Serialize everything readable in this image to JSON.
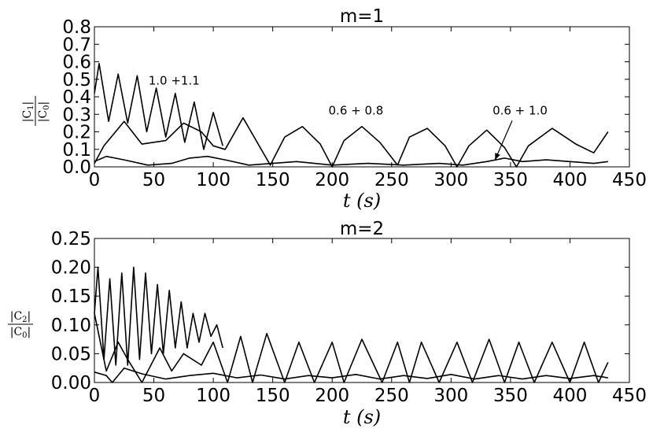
{
  "chart_data": [
    {
      "type": "line",
      "title": "m=1",
      "xlabel": "t (s)",
      "ylabel": {
        "num": "|C",
        "num_sub": "1",
        "den": "|C",
        "den_sub": "0"
      },
      "xlim": [
        0,
        450
      ],
      "ylim": [
        0,
        0.8
      ],
      "xticks": [
        0,
        50,
        100,
        150,
        200,
        250,
        300,
        350,
        400,
        450
      ],
      "yticks": [
        "0.0",
        "0.1",
        "0.2",
        "0.3",
        "0.4",
        "0.5",
        "0.6",
        "0.7",
        "0.8"
      ],
      "grid": false,
      "annotations": [
        {
          "text": "1.0 +1.1",
          "x": 67,
          "y": 0.47
        },
        {
          "text": "0.6 + 0.8",
          "x": 220,
          "y": 0.3
        },
        {
          "text": "0.6 + 1.0",
          "x": 358,
          "y": 0.3,
          "arrow_to": [
            337,
            0.04
          ]
        }
      ],
      "series": [
        {
          "x": [
            0,
            4,
            12,
            20,
            28,
            36,
            44,
            52,
            60,
            68,
            76,
            84,
            92,
            100,
            108
          ],
          "y": [
            0.42,
            0.59,
            0.26,
            0.53,
            0.25,
            0.52,
            0.2,
            0.45,
            0.17,
            0.42,
            0.14,
            0.37,
            0.1,
            0.31,
            0.12
          ]
        },
        {
          "x": [
            0,
            8,
            25,
            40,
            60,
            75,
            90,
            100,
            110,
            125,
            148,
            160,
            175,
            190,
            200,
            210,
            225,
            240,
            255,
            265,
            280,
            295,
            305,
            315,
            330,
            345,
            355,
            365,
            385,
            405,
            420,
            432
          ],
          "y": [
            0.02,
            0.12,
            0.26,
            0.13,
            0.15,
            0.25,
            0.2,
            0.12,
            0.1,
            0.28,
            0.01,
            0.17,
            0.23,
            0.13,
            0.0,
            0.15,
            0.23,
            0.14,
            0.01,
            0.17,
            0.22,
            0.12,
            0.0,
            0.12,
            0.21,
            0.11,
            0.0,
            0.12,
            0.22,
            0.13,
            0.08,
            0.2
          ]
        },
        {
          "x": [
            0,
            10,
            25,
            45,
            65,
            80,
            95,
            110,
            130,
            150,
            170,
            185,
            200,
            230,
            260,
            290,
            310,
            330,
            345,
            360,
            380,
            400,
            420,
            432
          ],
          "y": [
            0.03,
            0.06,
            0.04,
            0.01,
            0.02,
            0.05,
            0.06,
            0.04,
            0.01,
            0.02,
            0.03,
            0.02,
            0.01,
            0.02,
            0.01,
            0.02,
            0.01,
            0.03,
            0.05,
            0.03,
            0.04,
            0.03,
            0.02,
            0.03
          ]
        }
      ]
    },
    {
      "type": "line",
      "title": "m=2",
      "xlabel": "t (s)",
      "ylabel": {
        "num": "|C",
        "num_sub": "2",
        "den": "|C",
        "den_sub": "0"
      },
      "xlim": [
        0,
        450
      ],
      "ylim": [
        0,
        0.25
      ],
      "xticks": [
        0,
        50,
        100,
        150,
        200,
        250,
        300,
        350,
        400,
        450
      ],
      "yticks": [
        "0.00",
        "0.05",
        "0.10",
        "0.15",
        "0.20",
        "0.25"
      ],
      "grid": false,
      "annotations": [],
      "series": [
        {
          "x": [
            0,
            3,
            8,
            13,
            18,
            23,
            28,
            33,
            38,
            43,
            48,
            53,
            58,
            63,
            68,
            73,
            78,
            83,
            88,
            93,
            98,
            103,
            108
          ],
          "y": [
            0.12,
            0.2,
            0.04,
            0.18,
            0.03,
            0.19,
            0.03,
            0.2,
            0.04,
            0.19,
            0.05,
            0.17,
            0.05,
            0.16,
            0.06,
            0.14,
            0.06,
            0.12,
            0.07,
            0.12,
            0.08,
            0.1,
            0.06
          ]
        },
        {
          "x": [
            0,
            10,
            20,
            28,
            40,
            55,
            65,
            75,
            90,
            100,
            112,
            123,
            133,
            145,
            160,
            172,
            185,
            200,
            210,
            225,
            242,
            255,
            265,
            275,
            290,
            305,
            318,
            332,
            345,
            357,
            370,
            385,
            400,
            412,
            424,
            432
          ],
          "y": [
            0.12,
            0.02,
            0.07,
            0.04,
            0.0,
            0.06,
            0.02,
            0.05,
            0.03,
            0.07,
            0.0,
            0.08,
            0.0,
            0.085,
            0.0,
            0.07,
            0.0,
            0.07,
            0.0,
            0.075,
            0.0,
            0.07,
            0.0,
            0.07,
            0.0,
            0.07,
            0.0,
            0.075,
            0.0,
            0.07,
            0.0,
            0.07,
            0.0,
            0.07,
            0.0,
            0.035
          ]
        },
        {
          "x": [
            0,
            10,
            15,
            25,
            40,
            60,
            80,
            100,
            120,
            140,
            160,
            180,
            200,
            220,
            240,
            260,
            280,
            300,
            320,
            340,
            360,
            380,
            400,
            420,
            432
          ],
          "y": [
            0.018,
            0.012,
            0.0,
            0.025,
            0.015,
            0.006,
            0.012,
            0.016,
            0.008,
            0.013,
            0.006,
            0.012,
            0.008,
            0.014,
            0.006,
            0.012,
            0.007,
            0.014,
            0.006,
            0.012,
            0.006,
            0.012,
            0.007,
            0.012,
            0.008
          ]
        }
      ]
    }
  ]
}
